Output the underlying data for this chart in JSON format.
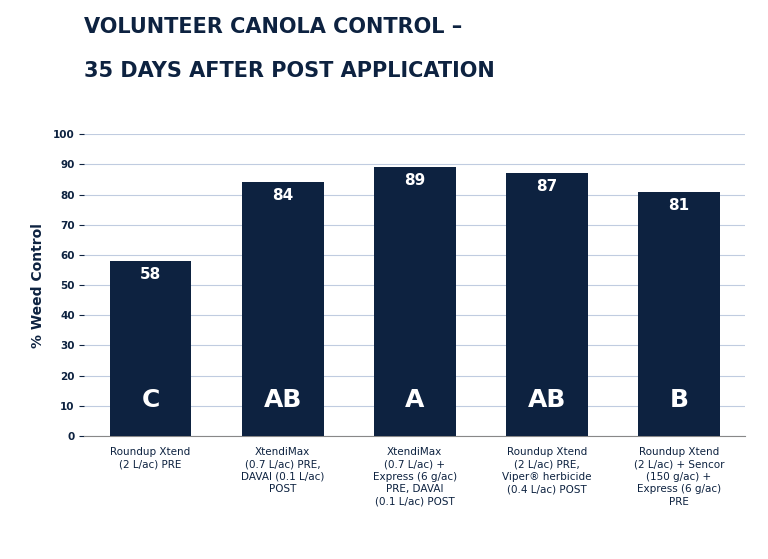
{
  "title_line1": "VOLUNTEER CANOLA CONTROL –",
  "title_line2": "35 DAYS AFTER POST APPLICATION",
  "ylabel": "% Weed Control",
  "categories": [
    "Roundup Xtend\n(2 L/ac) PRE",
    "XtendiMax\n(0.7 L/ac) PRE,\nDAVAI (0.1 L/ac)\nPOST",
    "XtendiMax\n(0.7 L/ac) +\nExpress (6 g/ac)\nPRE, DAVAI\n(0.1 L/ac) POST",
    "Roundup Xtend\n(2 L/ac) PRE,\nViper® herbicide\n(0.4 L/ac) POST",
    "Roundup Xtend\n(2 L/ac) + Sencor\n(150 g/ac) +\nExpress (6 g/ac)\nPRE"
  ],
  "values": [
    58,
    84,
    89,
    87,
    81
  ],
  "letters": [
    "C",
    "AB",
    "A",
    "AB",
    "B"
  ],
  "bar_color": "#0d2240",
  "bar_width": 0.62,
  "ylim": [
    0,
    100
  ],
  "yticks": [
    0,
    10,
    20,
    30,
    40,
    50,
    60,
    70,
    80,
    90,
    100
  ],
  "value_label_color": "white",
  "value_label_fontsize": 11,
  "letter_label_fontsize": 18,
  "title_fontsize": 15,
  "ylabel_fontsize": 10,
  "tick_label_fontsize": 7.5,
  "background_color": "#ffffff",
  "grid_color": "#c0cce0",
  "title_color": "#0d2240",
  "axis_label_color": "#0d2240",
  "tick_label_color": "#0d2240"
}
